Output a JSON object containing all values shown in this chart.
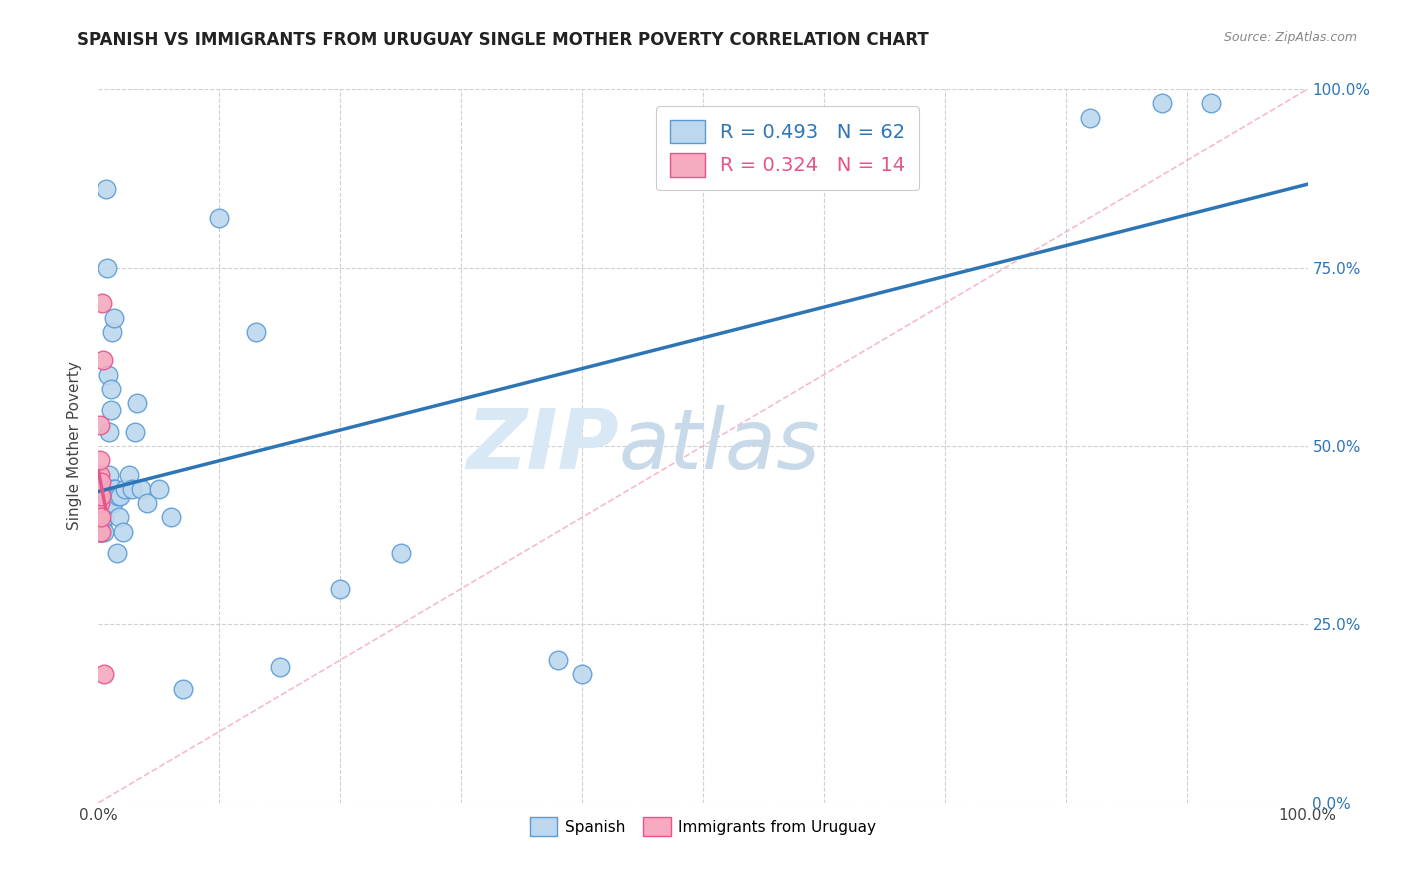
{
  "title": "SPANISH VS IMMIGRANTS FROM URUGUAY SINGLE MOTHER POVERTY CORRELATION CHART",
  "source": "Source: ZipAtlas.com",
  "ylabel": "Single Mother Poverty",
  "ytick_labels": [
    "0.0%",
    "25.0%",
    "50.0%",
    "75.0%",
    "100.0%"
  ],
  "ytick_values": [
    0.0,
    0.25,
    0.5,
    0.75,
    1.0
  ],
  "legend_label1": "Spanish",
  "legend_label2": "Immigrants from Uruguay",
  "r_spanish": 0.493,
  "n_spanish": 62,
  "r_uruguay": 0.324,
  "n_uruguay": 14,
  "spanish_color": "#BDD7EE",
  "uruguay_color": "#F4AABF",
  "spanish_edge_color": "#5B9BD5",
  "uruguay_edge_color": "#E8538A",
  "spanish_line_color": "#2E75B6",
  "uruguay_line_color": "#E8538A",
  "dashed_line_color": "#F4AABF",
  "watermark_zip": "ZIP",
  "watermark_atlas": "atlas",
  "spanish_x": [
    0.001,
    0.001,
    0.001,
    0.001,
    0.001,
    0.002,
    0.002,
    0.002,
    0.002,
    0.003,
    0.003,
    0.003,
    0.003,
    0.004,
    0.004,
    0.004,
    0.005,
    0.005,
    0.005,
    0.005,
    0.006,
    0.006,
    0.006,
    0.007,
    0.007,
    0.008,
    0.008,
    0.008,
    0.009,
    0.009,
    0.01,
    0.01,
    0.011,
    0.012,
    0.012,
    0.013,
    0.014,
    0.015,
    0.016,
    0.017,
    0.018,
    0.02,
    0.022,
    0.025,
    0.028,
    0.03,
    0.032,
    0.035,
    0.04,
    0.05,
    0.06,
    0.07,
    0.1,
    0.13,
    0.15,
    0.2,
    0.25,
    0.38,
    0.4,
    0.82,
    0.88,
    0.92
  ],
  "spanish_y": [
    0.4,
    0.41,
    0.42,
    0.43,
    0.38,
    0.38,
    0.4,
    0.42,
    0.44,
    0.39,
    0.42,
    0.43,
    0.38,
    0.41,
    0.43,
    0.42,
    0.38,
    0.42,
    0.41,
    0.4,
    0.42,
    0.44,
    0.86,
    0.43,
    0.75,
    0.44,
    0.6,
    0.42,
    0.52,
    0.46,
    0.55,
    0.58,
    0.66,
    0.44,
    0.42,
    0.68,
    0.44,
    0.35,
    0.43,
    0.4,
    0.43,
    0.38,
    0.44,
    0.46,
    0.44,
    0.52,
    0.56,
    0.44,
    0.42,
    0.44,
    0.4,
    0.16,
    0.82,
    0.66,
    0.19,
    0.3,
    0.35,
    0.2,
    0.18,
    0.96,
    0.98,
    0.98
  ],
  "uruguay_x": [
    0.001,
    0.001,
    0.001,
    0.001,
    0.001,
    0.001,
    0.001,
    0.002,
    0.002,
    0.002,
    0.002,
    0.003,
    0.004,
    0.005
  ],
  "uruguay_y": [
    0.38,
    0.4,
    0.42,
    0.44,
    0.46,
    0.48,
    0.53,
    0.38,
    0.4,
    0.43,
    0.45,
    0.7,
    0.62,
    0.18
  ]
}
